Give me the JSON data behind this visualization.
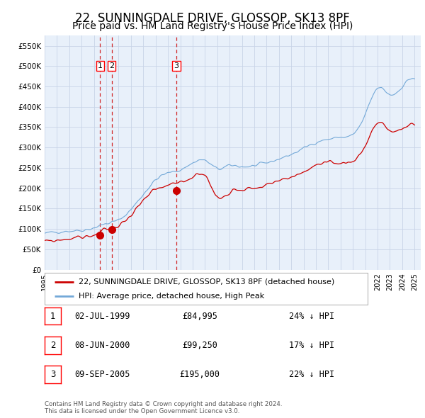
{
  "title": "22, SUNNINGDALE DRIVE, GLOSSOP, SK13 8PF",
  "subtitle": "Price paid vs. HM Land Registry's House Price Index (HPI)",
  "title_fontsize": 12,
  "subtitle_fontsize": 10,
  "ylim": [
    0,
    575000
  ],
  "yticks": [
    0,
    50000,
    100000,
    150000,
    200000,
    250000,
    300000,
    350000,
    400000,
    450000,
    500000,
    550000
  ],
  "ytick_labels": [
    "£0",
    "£50K",
    "£100K",
    "£150K",
    "£200K",
    "£250K",
    "£300K",
    "£350K",
    "£400K",
    "£450K",
    "£500K",
    "£550K"
  ],
  "xlim_start": 1995.0,
  "xlim_end": 2025.5,
  "xticks": [
    1995,
    1996,
    1997,
    1998,
    1999,
    2000,
    2001,
    2002,
    2003,
    2004,
    2005,
    2006,
    2007,
    2008,
    2009,
    2010,
    2011,
    2012,
    2013,
    2014,
    2015,
    2016,
    2017,
    2018,
    2019,
    2020,
    2021,
    2022,
    2023,
    2024,
    2025
  ],
  "hpi_color": "#74a9d8",
  "price_color": "#cc0000",
  "grid_color": "#c8d4e8",
  "background_color": "#e8f0fa",
  "sale_dates": [
    1999.5,
    2000.44,
    2005.69
  ],
  "sale_prices": [
    84995,
    99250,
    195000
  ],
  "sale_labels": [
    "1",
    "2",
    "3"
  ],
  "vline_color": "#cc0000",
  "legend_label_price": "22, SUNNINGDALE DRIVE, GLOSSOP, SK13 8PF (detached house)",
  "legend_label_hpi": "HPI: Average price, detached house, High Peak",
  "table_entries": [
    {
      "num": "1",
      "date": "02-JUL-1999",
      "price": "£84,995",
      "pct": "24% ↓ HPI"
    },
    {
      "num": "2",
      "date": "08-JUN-2000",
      "price": "£99,250",
      "pct": "17% ↓ HPI"
    },
    {
      "num": "3",
      "date": "09-SEP-2005",
      "price": "£195,000",
      "pct": "22% ↓ HPI"
    }
  ],
  "footnote": "Contains HM Land Registry data © Crown copyright and database right 2024.\nThis data is licensed under the Open Government Licence v3.0.",
  "hpi_base_values_years": [
    1995,
    1996,
    1997,
    1998,
    1999,
    2000,
    2001,
    2002,
    2003,
    2004,
    2005,
    2006,
    2007,
    2008,
    2009,
    2010,
    2011,
    2012,
    2013,
    2014,
    2015,
    2016,
    2017,
    2018,
    2019,
    2020,
    2021,
    2022,
    2023,
    2024,
    2025
  ],
  "hpi_base_values": [
    88000,
    93000,
    95000,
    97000,
    103000,
    113000,
    122000,
    148000,
    185000,
    220000,
    237000,
    245000,
    262000,
    268000,
    248000,
    255000,
    253000,
    255000,
    262000,
    272000,
    283000,
    298000,
    313000,
    320000,
    325000,
    332000,
    380000,
    445000,
    430000,
    450000,
    470000
  ],
  "price_base_values_years": [
    1995,
    1996,
    1997,
    1998,
    1999,
    2000,
    2001,
    2002,
    2003,
    2004,
    2005,
    2006,
    2007,
    2008,
    2009,
    2010,
    2011,
    2012,
    2013,
    2014,
    2015,
    2016,
    2017,
    2018,
    2019,
    2020,
    2021,
    2022,
    2023,
    2024,
    2025
  ],
  "price_base_values": [
    68000,
    72000,
    76000,
    80000,
    85000,
    99000,
    108000,
    135000,
    168000,
    195000,
    205000,
    215000,
    228000,
    232000,
    178000,
    192000,
    198000,
    200000,
    207000,
    218000,
    228000,
    240000,
    255000,
    260000,
    262000,
    268000,
    305000,
    360000,
    340000,
    345000,
    360000
  ]
}
